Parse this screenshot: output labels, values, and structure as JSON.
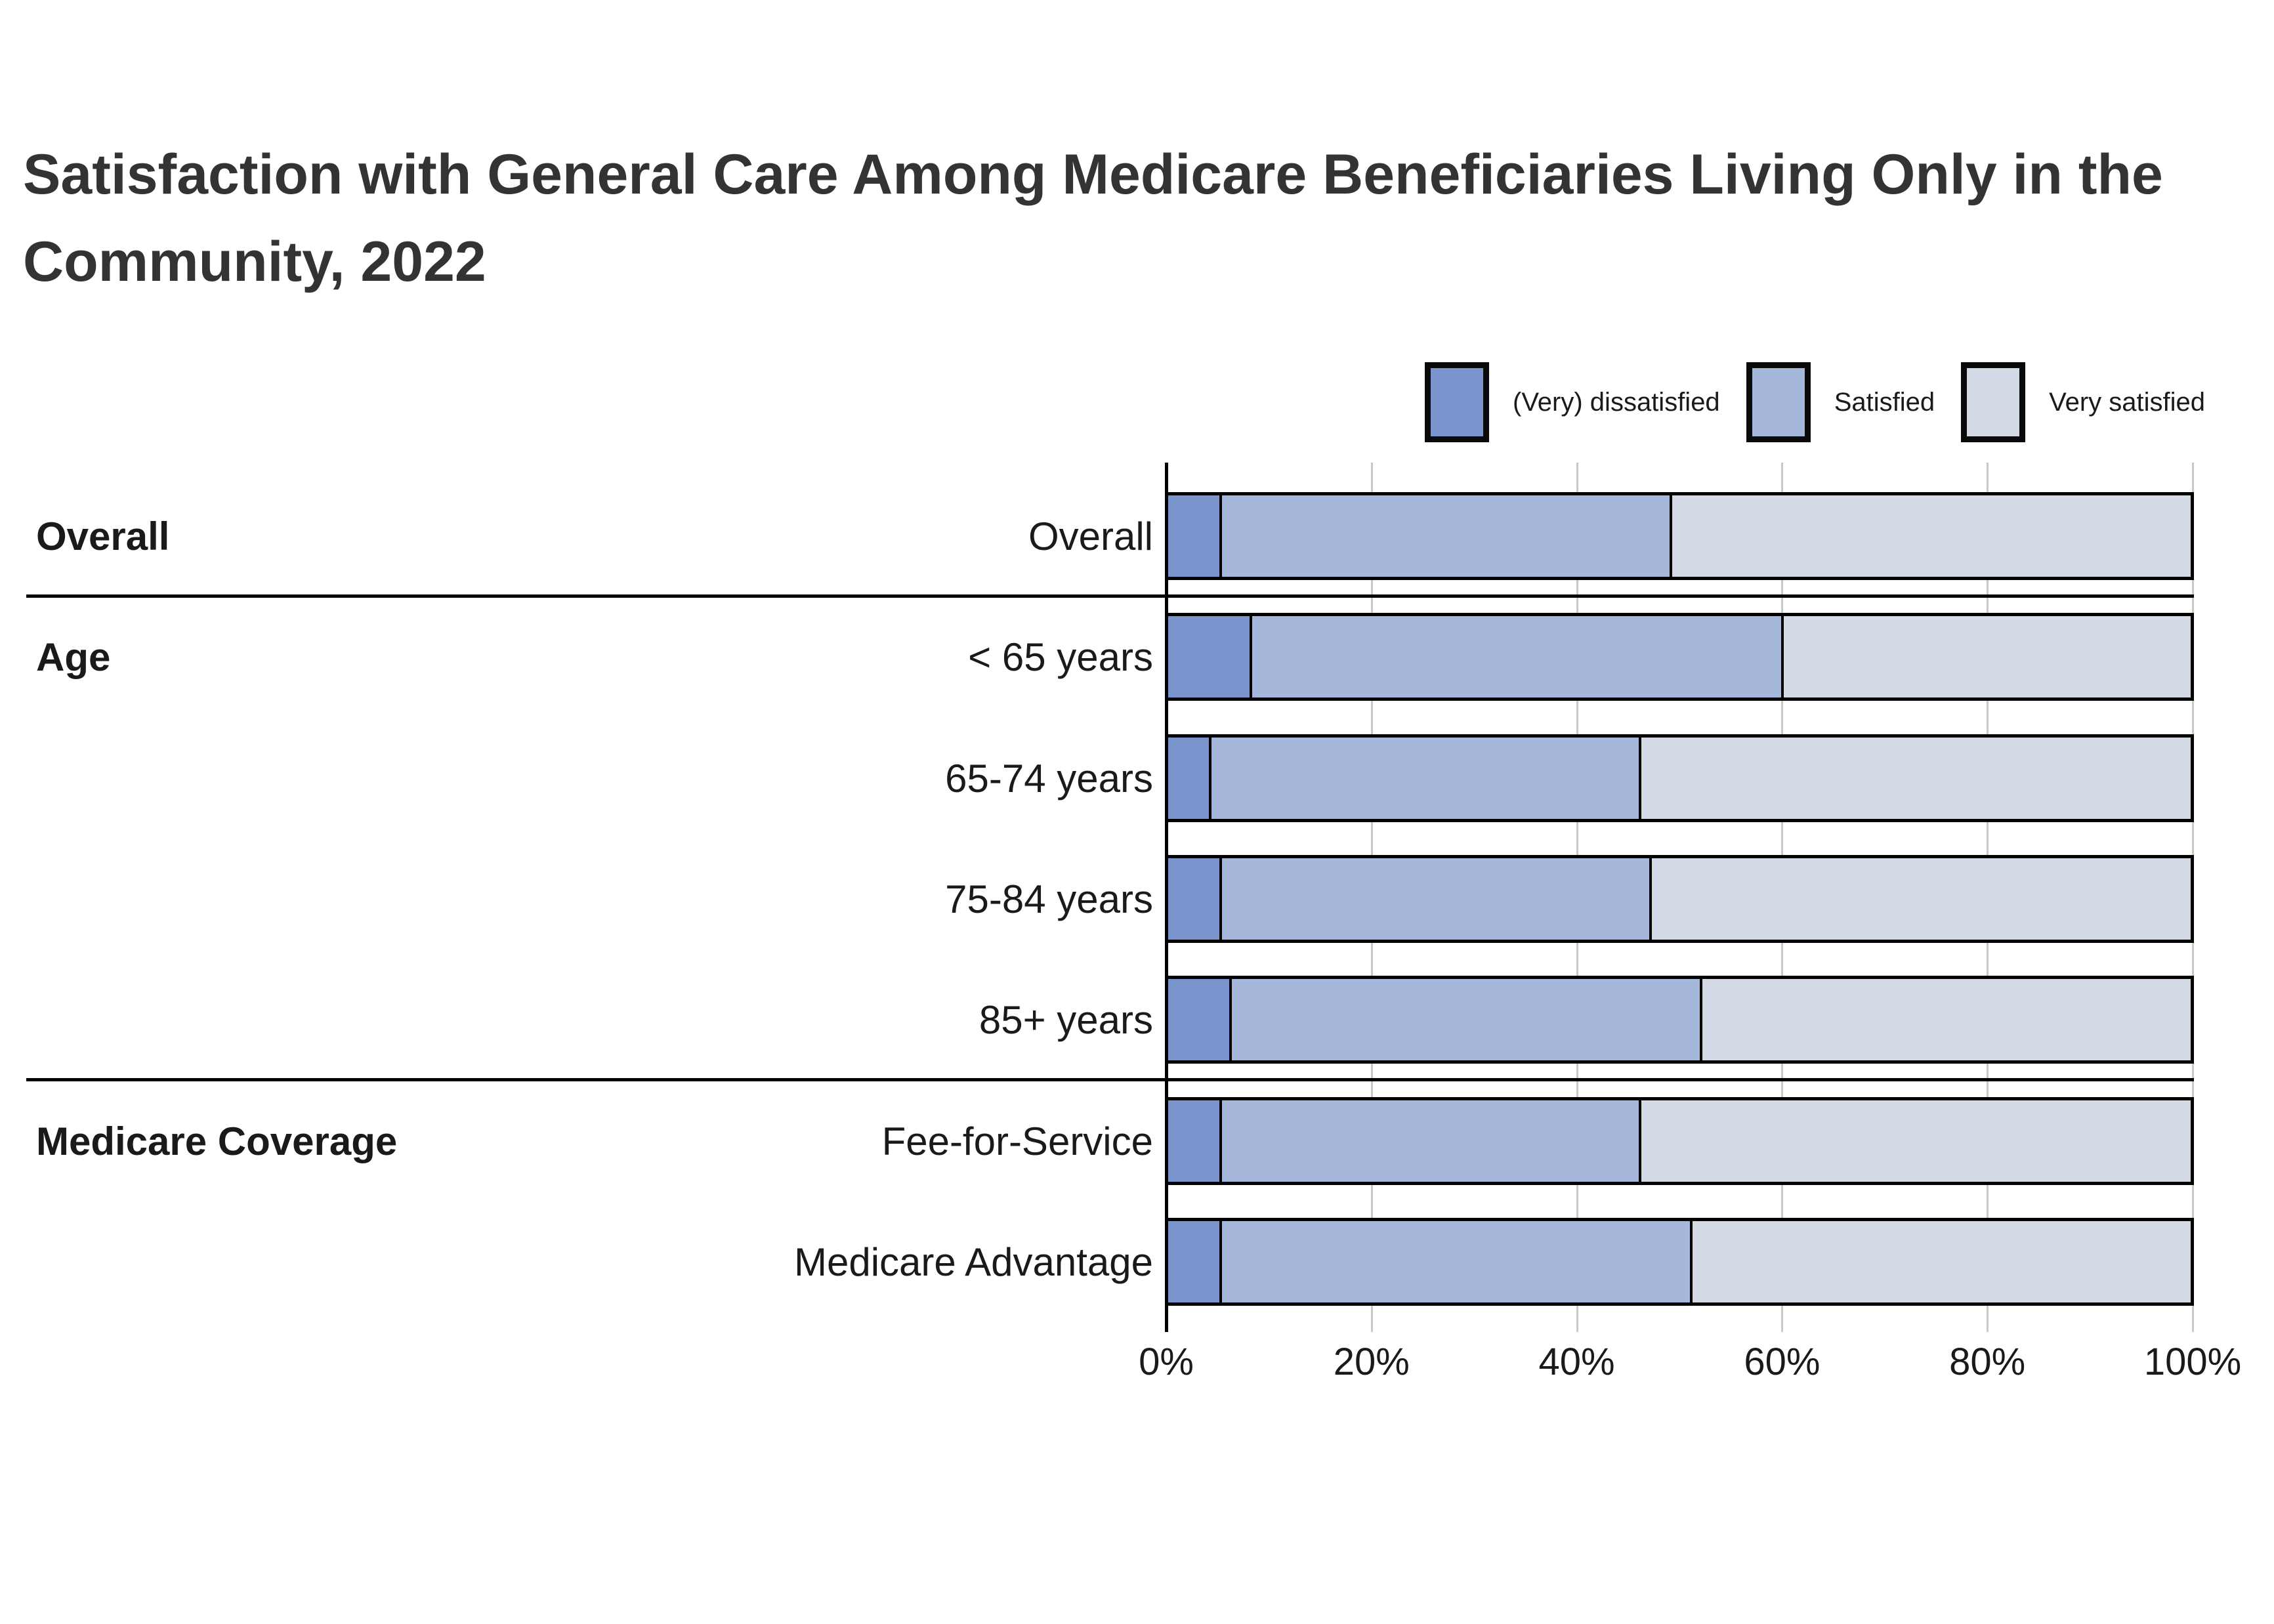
{
  "title_lines": [
    "Satisfaction with General Care Among Medicare Beneficiaries Living Only in the",
    "Community, 2022"
  ],
  "legend": {
    "items": [
      {
        "label": "(Very) dissatisfied",
        "color": "#7A94CD"
      },
      {
        "label": "Satisfied",
        "color": "#A5B8DC"
      },
      {
        "label": "Very satisfied",
        "color": "#D3D9E5"
      }
    ]
  },
  "chart_data": {
    "type": "bar",
    "orientation": "horizontal",
    "stacked": true,
    "title": "Satisfaction with General Care Among Medicare Beneficiaries Living Only in the Community, 2022",
    "series_names": [
      "(Very) dissatisfied",
      "Satisfied",
      "Very satisfied"
    ],
    "series_colors": [
      "#7A94CD",
      "#A5B8DC",
      "#D3D9E5"
    ],
    "unit": "%",
    "groups": [
      {
        "group": "Overall",
        "rows": [
          {
            "category": "Overall",
            "values": [
              5,
              44,
              51
            ]
          }
        ]
      },
      {
        "group": "Age",
        "rows": [
          {
            "category": "< 65 years",
            "values": [
              8,
              52,
              40
            ]
          },
          {
            "category": "65-74 years",
            "values": [
              4,
              42,
              54
            ]
          },
          {
            "category": "75-84 years",
            "values": [
              5,
              42,
              53
            ]
          },
          {
            "category": "85+ years",
            "values": [
              6,
              46,
              48
            ]
          }
        ]
      },
      {
        "group": "Medicare Coverage",
        "rows": [
          {
            "category": "Fee-for-Service",
            "values": [
              5,
              41,
              54
            ]
          },
          {
            "category": "Medicare Advantage",
            "values": [
              5,
              46,
              49
            ]
          }
        ]
      }
    ],
    "x_axis": {
      "range": [
        0,
        100
      ],
      "tick_labels": [
        "0%",
        "20%",
        "40%",
        "60%",
        "80%",
        "100%"
      ],
      "grid": true
    },
    "legend_position": "top-right",
    "bar_border_color": "#000000",
    "gridline_color": "#c9c9c9"
  }
}
